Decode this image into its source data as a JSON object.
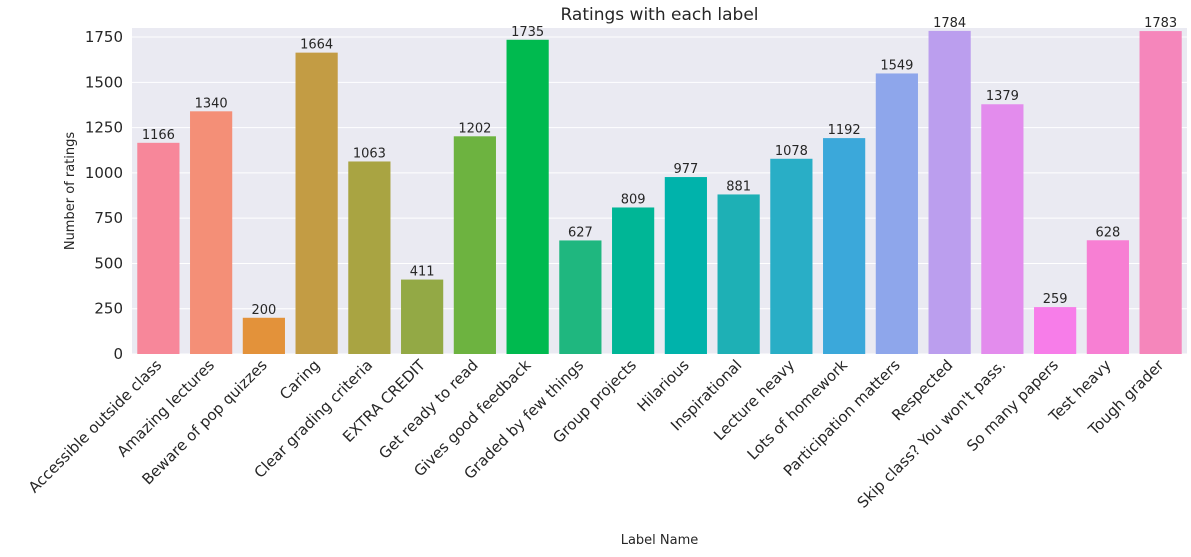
{
  "chart_data": {
    "type": "bar",
    "title": "Ratings with each label",
    "xlabel": "Label Name",
    "ylabel": "Number of ratings",
    "ylim": [
      0,
      1800
    ],
    "yticks": [
      0,
      250,
      500,
      750,
      1000,
      1250,
      1500,
      1750
    ],
    "grid": true,
    "categories": [
      "Accessible outside class",
      "Amazing lectures",
      "Beware of pop quizzes",
      "Caring",
      "Clear grading criteria",
      "EXTRA CREDIT",
      "Get ready to read",
      "Gives good feedback",
      "Graded by few things",
      "Group projects",
      "Hilarious",
      "Inspirational",
      "Lecture heavy",
      "Lots of homework",
      "Participation matters",
      "Respected",
      "Skip class? You won't pass.",
      "So many papers",
      "Test heavy",
      "Tough grader"
    ],
    "values": [
      1166,
      1340,
      200,
      1664,
      1063,
      411,
      1202,
      1735,
      627,
      809,
      977,
      881,
      1078,
      1192,
      1549,
      1784,
      1379,
      259,
      628,
      1783
    ],
    "colors": [
      "#f7879a",
      "#f48f77",
      "#e3923a",
      "#c39c44",
      "#a9a442",
      "#93a945",
      "#6db340",
      "#00ba4f",
      "#1fb77f",
      "#00b696",
      "#00b3ab",
      "#1eb0b5",
      "#29aec6",
      "#3ba8da",
      "#8ea6eb",
      "#bb9eee",
      "#e38ced",
      "#f77de9",
      "#f77fd3",
      "#f586bb"
    ],
    "background": "#eaeaf2"
  }
}
